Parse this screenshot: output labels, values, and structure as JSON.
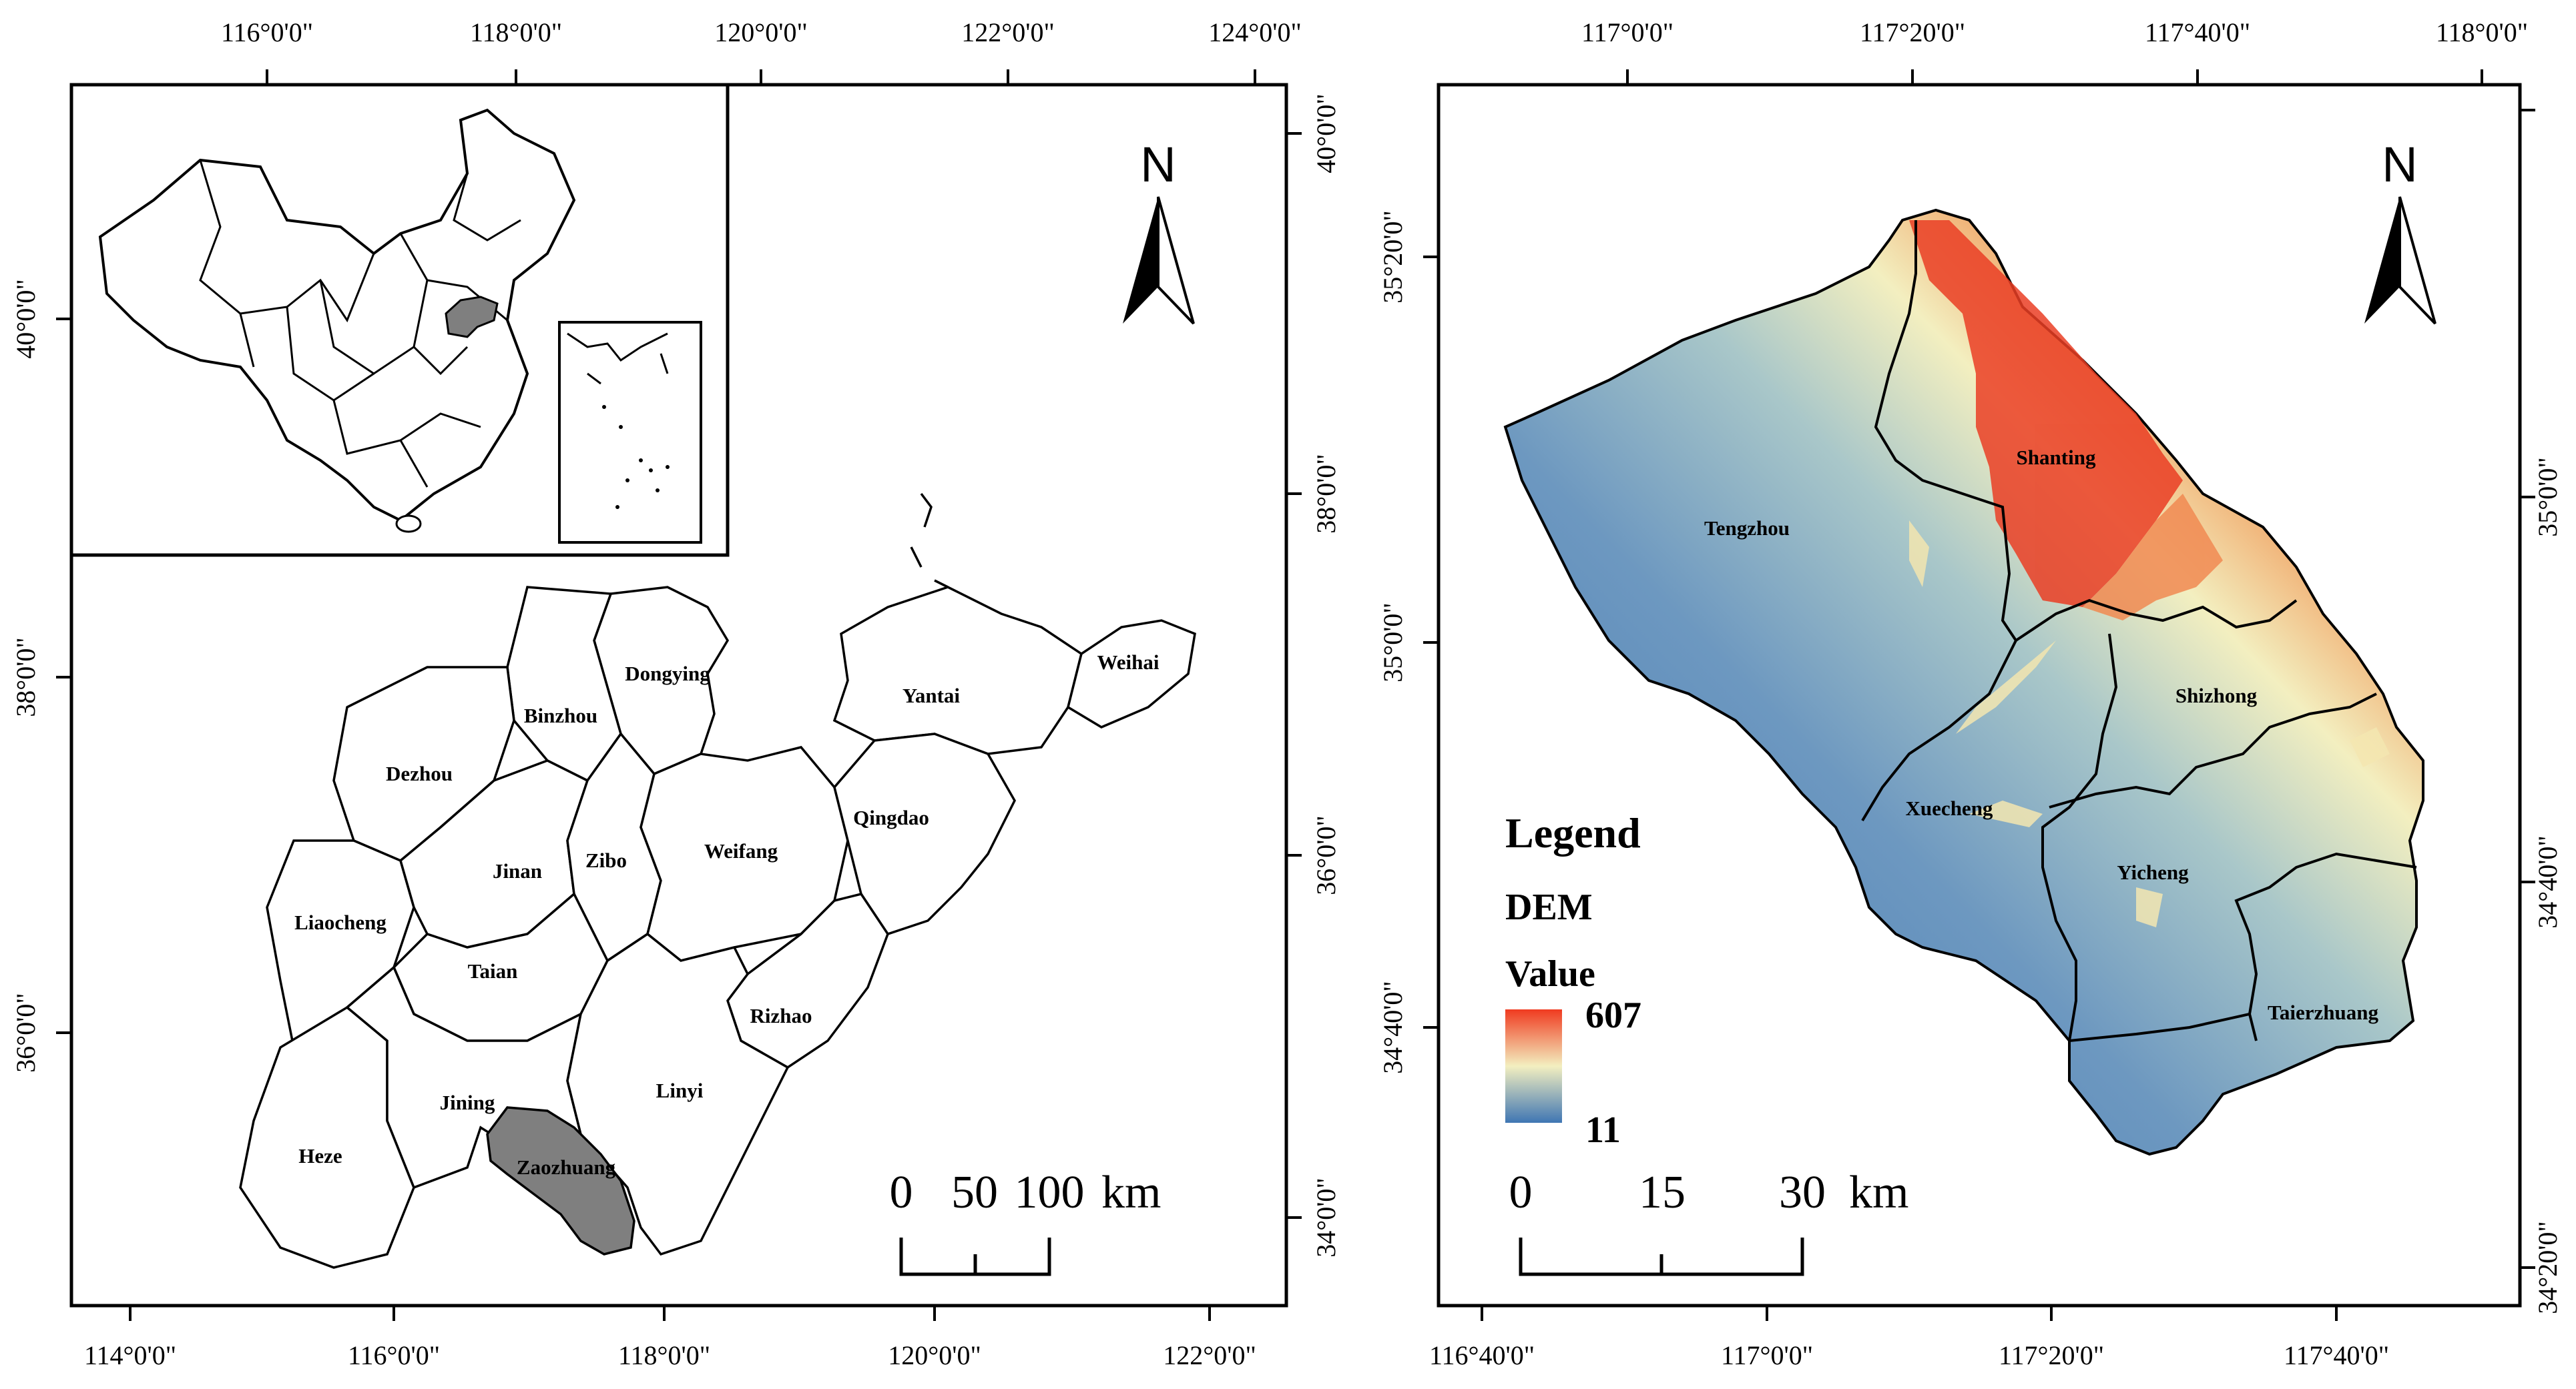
{
  "left_map": {
    "top_ticks": [
      "116°0'0\"",
      "118°0'0\"",
      "120°0'0\"",
      "122°0'0\"",
      "124°0'0\""
    ],
    "bottom_ticks": [
      "114°0'0\"",
      "116°0'0\"",
      "118°0'0\"",
      "120°0'0\"",
      "122°0'0\""
    ],
    "left_ticks": [
      "40°0'0\"",
      "38°0'0\"",
      "36°0'0\""
    ],
    "right_ticks": [
      "40°0'0\"",
      "38°0'0\"",
      "36°0'0\"",
      "34°0'0\""
    ],
    "north_label": "N",
    "scale": {
      "labels": [
        "0",
        "50",
        "100"
      ],
      "unit": "km"
    },
    "cities": [
      "Dongying",
      "Binzhou",
      "Yantai",
      "Weihai",
      "Dezhou",
      "Qingdao",
      "Weifang",
      "Jinan",
      "Zibo",
      "Liaocheng",
      "Taian",
      "Rizhao",
      "Linyi",
      "Jining",
      "Heze",
      "Zaozhuang"
    ],
    "highlight_color": "#7f7f7f"
  },
  "right_map": {
    "top_ticks": [
      "117°0'0\"",
      "117°20'0\"",
      "117°40'0\"",
      "118°0'0\""
    ],
    "bottom_ticks": [
      "116°40'0\"",
      "117°0'0\"",
      "117°20'0\"",
      "117°40'0\""
    ],
    "left_ticks": [
      "35°20'0\"",
      "35°0'0\"",
      "34°40'0\""
    ],
    "right_ticks": [
      "35°0'0\"",
      "34°40'0\"",
      "34°20'0\""
    ],
    "north_label": "N",
    "districts": [
      "Shanting",
      "Tengzhou",
      "Shizhong",
      "Xuecheng",
      "Yicheng",
      "Taierzhuang"
    ],
    "legend": {
      "title": "Legend",
      "layer": "DEM",
      "value_label": "Value",
      "max": "607",
      "min": "11"
    },
    "scale": {
      "labels": [
        "0",
        "15",
        "30"
      ],
      "unit": "km"
    },
    "dem_colors": {
      "low": "#3f76b3",
      "mid": "#f3efc0",
      "high": "#f03b20"
    }
  }
}
